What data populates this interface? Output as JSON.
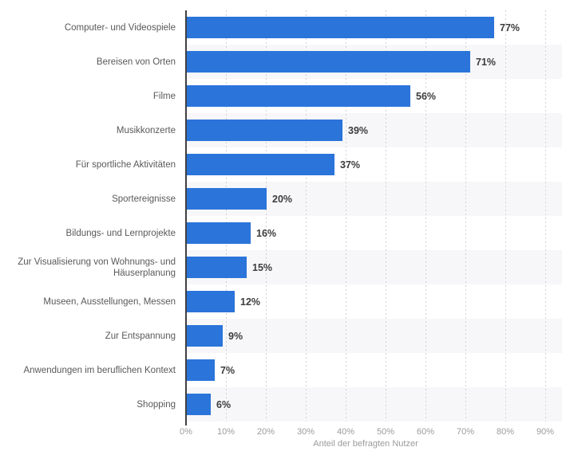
{
  "chart_data": {
    "type": "bar",
    "orientation": "horizontal",
    "title": "",
    "categories": [
      "Computer- und Videospiele",
      "Bereisen von Orten",
      "Filme",
      "Musikkonzerte",
      "Für sportliche Aktivitäten",
      "Sportereignisse",
      "Bildungs- und Lernprojekte",
      "Zur Visualisierung von Wohnungs- und Häuserplanung",
      "Museen, Ausstellungen, Messen",
      "Zur Entspannung",
      "Anwendungen im beruflichen Kontext",
      "Shopping"
    ],
    "values": [
      77,
      71,
      56,
      39,
      37,
      20,
      16,
      15,
      12,
      9,
      7,
      6
    ],
    "value_labels": [
      "77%",
      "71%",
      "56%",
      "39%",
      "37%",
      "20%",
      "16%",
      "15%",
      "12%",
      "9%",
      "7%",
      "6%"
    ],
    "xlabel": "Anteil der befragten Nutzer",
    "ylabel": "",
    "x_ticks": [
      "0%",
      "10%",
      "20%",
      "30%",
      "40%",
      "50%",
      "60%",
      "70%",
      "80%",
      "90%"
    ],
    "xlim": [
      0,
      90
    ],
    "grid": "vertical-dotted",
    "legend": "none",
    "colors": {
      "bar": "#2b74da",
      "stripe": "#f7f7f9",
      "gridline": "#d2d2d4",
      "axis_line": "#404044",
      "category_label": "#595959",
      "value_label": "#3c3c3c",
      "tick_label": "#9b9b9b",
      "background": "#ffffff"
    }
  }
}
